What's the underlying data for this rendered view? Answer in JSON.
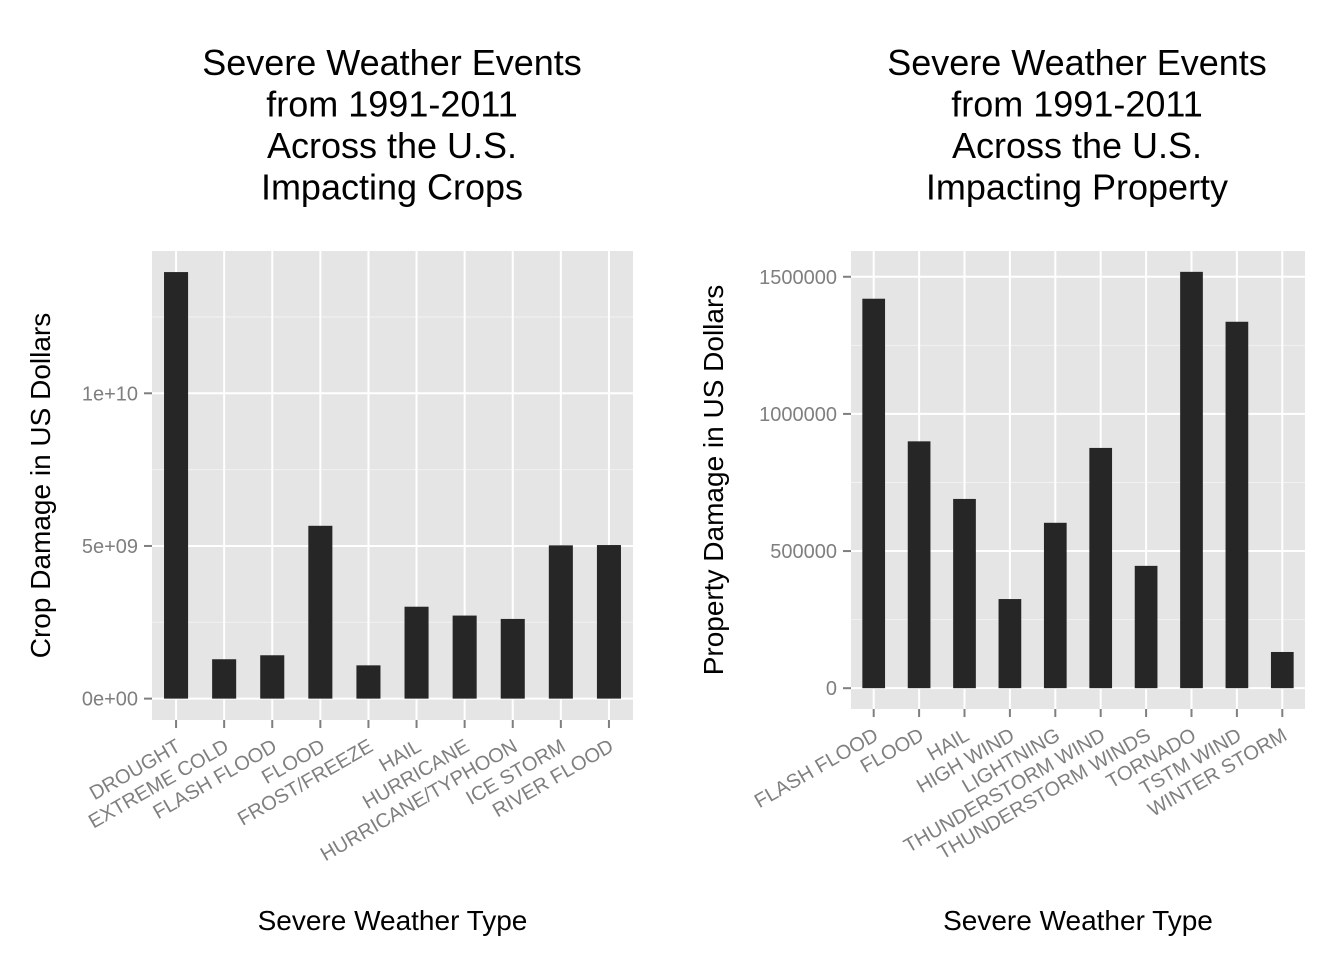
{
  "chart_data": [
    {
      "type": "bar",
      "title_lines": [
        "Severe Weather Events",
        "from 1991-2011",
        "Across the U.S.",
        "Impacting Crops"
      ],
      "xlabel": "Severe Weather Type",
      "ylabel": "Crop Damage in US Dollars",
      "categories": [
        "DROUGHT",
        "EXTREME COLD",
        "FLASH FLOOD",
        "FLOOD",
        "FROST/FREEZE",
        "HAIL",
        "HURRICANE",
        "HURRICANE/TYPHOON",
        "ICE STORM",
        "RIVER FLOOD"
      ],
      "values": [
        13970000000,
        1290000000,
        1420000000,
        5660000000,
        1090000000,
        3010000000,
        2720000000,
        2610000000,
        5020000000,
        5030000000
      ],
      "yticks": [
        0,
        5000000000,
        10000000000
      ],
      "ytick_labels": [
        "0e+00",
        "5e+09",
        "1e+10"
      ],
      "ylim": [
        -700000000,
        14660000000
      ],
      "grid": true
    },
    {
      "type": "bar",
      "title_lines": [
        "Severe Weather Events",
        "from 1991-2011",
        "Across the U.S.",
        "Impacting Property"
      ],
      "xlabel": "Severe Weather Type",
      "ylabel": "Property Damage in US Dollars",
      "categories": [
        "FLASH FLOOD",
        "FLOOD",
        "HAIL",
        "HIGH WIND",
        "LIGHTNING",
        "THUNDERSTORM WIND",
        "THUNDERSTORM WINDS",
        "TORNADO",
        "TSTM WIND",
        "WINTER STORM"
      ],
      "values": [
        1420000,
        900000,
        690000,
        325000,
        603000,
        876000,
        446000,
        1518000,
        1336000,
        132000
      ],
      "yticks": [
        0,
        500000,
        1000000,
        1500000
      ],
      "ytick_labels": [
        "0",
        "500000",
        "1000000",
        "1500000"
      ],
      "ylim": [
        -75900,
        1594000
      ],
      "grid": true
    }
  ]
}
